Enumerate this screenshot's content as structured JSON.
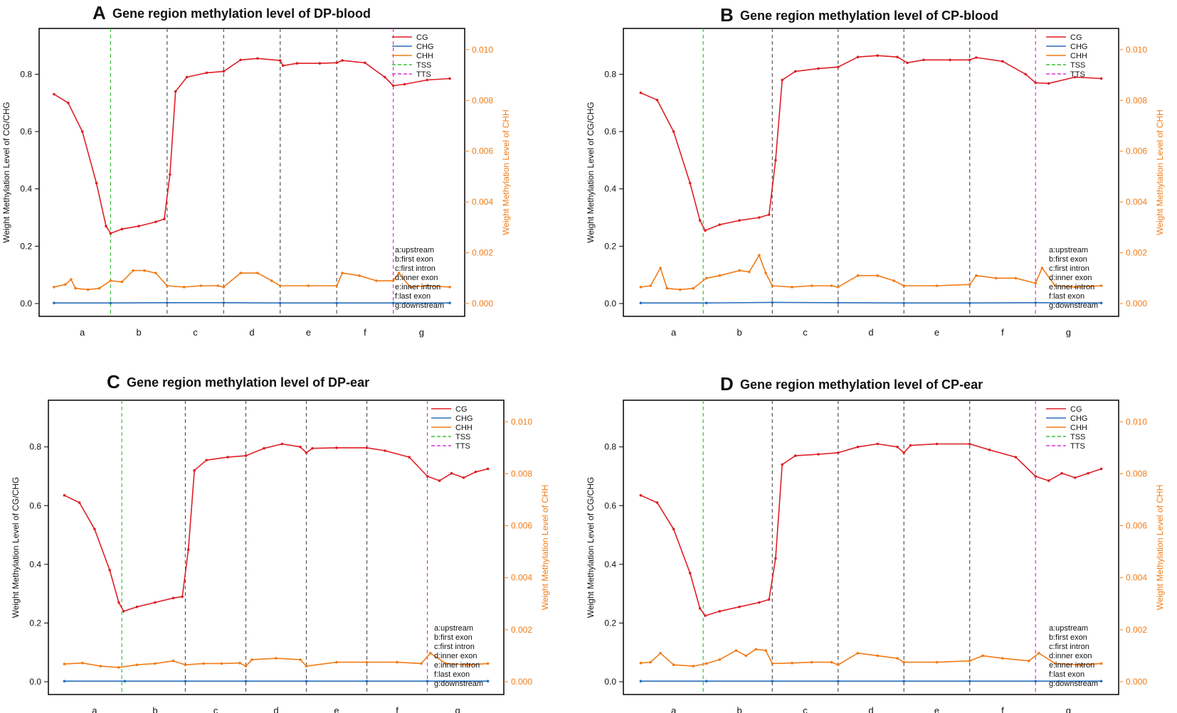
{
  "figure": {
    "left_axis_label": "Weight Methylation Level of CG/CHG",
    "right_axis_label": "Weight Methylation Level of CHH",
    "left_ticks": [
      "0.0",
      "0.2",
      "0.4",
      "0.6",
      "0.8"
    ],
    "right_ticks": [
      "0.000",
      "0.002",
      "0.004",
      "0.006",
      "0.008",
      "0.010"
    ],
    "regions": [
      "a",
      "b",
      "c",
      "d",
      "e",
      "f",
      "g"
    ],
    "legend": [
      "CG",
      "CHG",
      "CHH",
      "TSS",
      "TTS"
    ],
    "region_key": [
      "a:upstream",
      "b:first exon",
      "c:first intron",
      "d:inner exon",
      "e:inner intron",
      "f:last exon",
      "g:downstream"
    ]
  },
  "colors": {
    "CG": "#dd1f26",
    "CHG": "#2a6fba",
    "CHH": "#f07c17",
    "TSS": "#3bbd3b",
    "TTS": "#d633d6",
    "boundary": "#555555",
    "right_axis": "#f07c17"
  },
  "chart_data": [
    {
      "panel": "A",
      "title": "Gene region methylation level of DP-blood",
      "type": "line",
      "x_categories": [
        "a",
        "b",
        "c",
        "d",
        "e",
        "f",
        "g"
      ],
      "ylim_left": [
        0,
        0.93
      ],
      "ylim_right": [
        0,
        0.0105
      ],
      "tss_x": 1.0,
      "tts_x": 6.0,
      "series": [
        {
          "name": "CG",
          "axis": "left",
          "x": [
            0,
            0.25,
            0.5,
            0.75,
            0.92,
            1.0,
            1.2,
            1.5,
            1.8,
            1.95,
            2.05,
            2.15,
            2.35,
            2.7,
            3.0,
            3.3,
            3.6,
            4.0,
            4.05,
            4.3,
            4.7,
            5.0,
            5.1,
            5.5,
            5.85,
            6.0,
            6.2,
            6.6,
            7.0
          ],
          "values": [
            0.73,
            0.7,
            0.6,
            0.42,
            0.27,
            0.245,
            0.26,
            0.27,
            0.285,
            0.295,
            0.45,
            0.74,
            0.79,
            0.805,
            0.81,
            0.85,
            0.855,
            0.848,
            0.83,
            0.838,
            0.838,
            0.84,
            0.848,
            0.84,
            0.79,
            0.76,
            0.765,
            0.78,
            0.785
          ]
        },
        {
          "name": "CHG",
          "axis": "left",
          "x": [
            0,
            1,
            2,
            3,
            4,
            5,
            6,
            7
          ],
          "values": [
            0.002,
            0.002,
            0.003,
            0.003,
            0.002,
            0.002,
            0.002,
            0.002
          ]
        },
        {
          "name": "CHH",
          "axis": "right",
          "x": [
            0,
            0.2,
            0.3,
            0.38,
            0.6,
            0.8,
            1.0,
            1.2,
            1.4,
            1.6,
            1.8,
            2.0,
            2.3,
            2.6,
            2.9,
            3.0,
            3.3,
            3.6,
            3.85,
            4.0,
            4.5,
            5.0,
            5.1,
            5.4,
            5.7,
            6.0,
            6.1,
            6.3,
            6.6,
            7.0
          ],
          "values": [
            0.00065,
            0.00075,
            0.00095,
            0.0006,
            0.00055,
            0.0006,
            0.0009,
            0.00085,
            0.0013,
            0.0013,
            0.0012,
            0.0007,
            0.00065,
            0.0007,
            0.0007,
            0.00065,
            0.0012,
            0.0012,
            0.0009,
            0.0007,
            0.0007,
            0.0007,
            0.0012,
            0.0011,
            0.0009,
            0.0009,
            0.0012,
            0.00065,
            0.0007,
            0.00065
          ]
        }
      ]
    },
    {
      "panel": "B",
      "title": "Gene region methylation level of CP-blood",
      "type": "line",
      "x_categories": [
        "a",
        "b",
        "c",
        "d",
        "e",
        "f",
        "g"
      ],
      "ylim_left": [
        0,
        0.93
      ],
      "ylim_right": [
        0,
        0.0105
      ],
      "tss_x": 0.95,
      "tts_x": 6.0,
      "series": [
        {
          "name": "CG",
          "axis": "left",
          "x": [
            0,
            0.25,
            0.5,
            0.75,
            0.9,
            0.98,
            1.2,
            1.5,
            1.8,
            1.95,
            2.05,
            2.15,
            2.35,
            2.7,
            3.0,
            3.3,
            3.6,
            3.9,
            4.05,
            4.3,
            4.7,
            5.0,
            5.1,
            5.5,
            5.85,
            6.0,
            6.2,
            6.6,
            7.0
          ],
          "values": [
            0.735,
            0.71,
            0.6,
            0.42,
            0.29,
            0.255,
            0.275,
            0.29,
            0.3,
            0.31,
            0.5,
            0.78,
            0.81,
            0.82,
            0.825,
            0.86,
            0.865,
            0.86,
            0.84,
            0.85,
            0.85,
            0.85,
            0.858,
            0.845,
            0.8,
            0.77,
            0.768,
            0.79,
            0.785
          ]
        },
        {
          "name": "CHG",
          "axis": "left",
          "x": [
            0,
            1,
            2,
            3,
            4,
            5,
            6,
            7
          ],
          "values": [
            0.002,
            0.002,
            0.004,
            0.003,
            0.002,
            0.002,
            0.003,
            0.002
          ]
        },
        {
          "name": "CHH",
          "axis": "right",
          "x": [
            0,
            0.15,
            0.3,
            0.4,
            0.6,
            0.8,
            1.0,
            1.2,
            1.5,
            1.65,
            1.8,
            1.9,
            2.0,
            2.3,
            2.6,
            2.9,
            3.0,
            3.3,
            3.6,
            3.85,
            4.0,
            4.5,
            5.0,
            5.1,
            5.4,
            5.7,
            6.0,
            6.1,
            6.3,
            6.6,
            7.0
          ],
          "values": [
            0.00065,
            0.0007,
            0.0014,
            0.0006,
            0.00055,
            0.0006,
            0.001,
            0.0011,
            0.0013,
            0.00125,
            0.0019,
            0.0012,
            0.0007,
            0.00065,
            0.0007,
            0.0007,
            0.00065,
            0.0011,
            0.0011,
            0.0009,
            0.0007,
            0.0007,
            0.00075,
            0.0011,
            0.001,
            0.001,
            0.0008,
            0.0014,
            0.0007,
            0.00065,
            0.0007
          ]
        }
      ]
    },
    {
      "panel": "C",
      "title": "Gene region methylation level of DP-ear",
      "type": "line",
      "x_categories": [
        "a",
        "b",
        "c",
        "d",
        "e",
        "f",
        "g"
      ],
      "ylim_left": [
        0,
        0.93
      ],
      "ylim_right": [
        0,
        0.0105
      ],
      "tss_x": 0.95,
      "tts_x": 6.0,
      "series": [
        {
          "name": "CG",
          "axis": "left",
          "x": [
            0,
            0.25,
            0.5,
            0.75,
            0.9,
            0.98,
            1.2,
            1.5,
            1.8,
            1.95,
            2.05,
            2.15,
            2.35,
            2.7,
            3.0,
            3.3,
            3.6,
            3.9,
            4.0,
            4.1,
            4.5,
            5.0,
            5.3,
            5.7,
            6.0,
            6.2,
            6.4,
            6.6,
            6.8,
            7.0
          ],
          "values": [
            0.635,
            0.61,
            0.52,
            0.38,
            0.27,
            0.24,
            0.255,
            0.27,
            0.285,
            0.29,
            0.45,
            0.72,
            0.755,
            0.765,
            0.77,
            0.795,
            0.81,
            0.8,
            0.78,
            0.795,
            0.797,
            0.797,
            0.787,
            0.765,
            0.7,
            0.685,
            0.71,
            0.695,
            0.715,
            0.725
          ]
        },
        {
          "name": "CHG",
          "axis": "left",
          "x": [
            0,
            1,
            2,
            3,
            4,
            5,
            6,
            7
          ],
          "values": [
            0.002,
            0.002,
            0.002,
            0.002,
            0.002,
            0.002,
            0.002,
            0.002
          ]
        },
        {
          "name": "CHH",
          "axis": "right",
          "x": [
            0,
            0.3,
            0.6,
            0.9,
            1.2,
            1.5,
            1.8,
            2.0,
            2.3,
            2.6,
            2.9,
            3.0,
            3.1,
            3.5,
            3.9,
            4.0,
            4.5,
            5.0,
            5.5,
            5.9,
            6.05,
            6.3,
            6.7,
            7.0
          ],
          "values": [
            0.00068,
            0.00072,
            0.0006,
            0.00055,
            0.00065,
            0.0007,
            0.0008,
            0.00065,
            0.0007,
            0.0007,
            0.00072,
            0.0006,
            0.00085,
            0.0009,
            0.00085,
            0.0006,
            0.00075,
            0.00075,
            0.00075,
            0.0007,
            0.0011,
            0.0007,
            0.00065,
            0.0007
          ]
        }
      ]
    },
    {
      "panel": "D",
      "title": "Gene region methylation level of CP-ear",
      "type": "line",
      "x_categories": [
        "a",
        "b",
        "c",
        "d",
        "e",
        "f",
        "g"
      ],
      "ylim_left": [
        0,
        0.93
      ],
      "ylim_right": [
        0,
        0.0105
      ],
      "tss_x": 0.95,
      "tts_x": 6.0,
      "series": [
        {
          "name": "CG",
          "axis": "left",
          "x": [
            0,
            0.25,
            0.5,
            0.75,
            0.9,
            0.98,
            1.2,
            1.5,
            1.8,
            1.95,
            2.05,
            2.15,
            2.35,
            2.7,
            3.0,
            3.3,
            3.6,
            3.9,
            4.0,
            4.1,
            4.5,
            5.0,
            5.3,
            5.7,
            6.0,
            6.2,
            6.4,
            6.6,
            6.8,
            7.0
          ],
          "values": [
            0.635,
            0.61,
            0.52,
            0.37,
            0.25,
            0.225,
            0.24,
            0.255,
            0.27,
            0.28,
            0.42,
            0.74,
            0.77,
            0.775,
            0.78,
            0.8,
            0.81,
            0.8,
            0.78,
            0.805,
            0.81,
            0.81,
            0.79,
            0.765,
            0.7,
            0.685,
            0.71,
            0.695,
            0.71,
            0.725
          ]
        },
        {
          "name": "CHG",
          "axis": "left",
          "x": [
            0,
            1,
            2,
            3,
            4,
            5,
            6,
            7
          ],
          "values": [
            0.002,
            0.002,
            0.002,
            0.002,
            0.002,
            0.002,
            0.002,
            0.002
          ]
        },
        {
          "name": "CHH",
          "axis": "right",
          "x": [
            0,
            0.15,
            0.3,
            0.5,
            0.8,
            1.0,
            1.2,
            1.45,
            1.6,
            1.75,
            1.9,
            2.0,
            2.3,
            2.6,
            2.9,
            3.0,
            3.3,
            3.6,
            3.9,
            4.0,
            4.5,
            5.0,
            5.2,
            5.5,
            5.9,
            6.05,
            6.3,
            6.7,
            7.0
          ],
          "values": [
            0.00072,
            0.00075,
            0.0011,
            0.00065,
            0.0006,
            0.0007,
            0.00085,
            0.0012,
            0.001,
            0.00125,
            0.0012,
            0.0007,
            0.00072,
            0.00075,
            0.00075,
            0.00065,
            0.0011,
            0.001,
            0.0009,
            0.00075,
            0.00075,
            0.0008,
            0.001,
            0.0009,
            0.0008,
            0.0011,
            0.0007,
            0.00065,
            0.0007
          ]
        }
      ]
    }
  ]
}
